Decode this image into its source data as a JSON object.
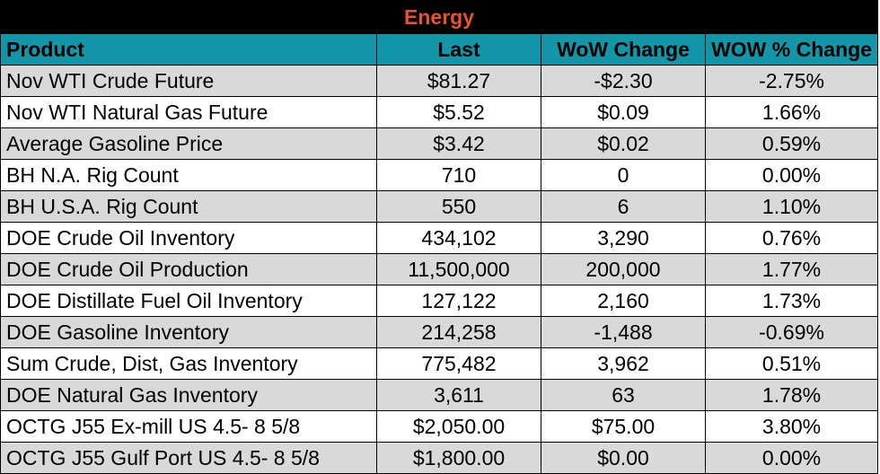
{
  "title": "Energy",
  "colors": {
    "title_bg": "#000000",
    "title_text": "#e8532e",
    "header_bg": "#1496a9",
    "row_alt_bg": "#d9d9d9",
    "row_bg": "#ffffff",
    "border": "#000000"
  },
  "headers": {
    "product": "Product",
    "last": "Last",
    "wow_change": "WoW Change",
    "wow_pct_change": "WOW % Change"
  },
  "rows": [
    {
      "product": "Nov WTI Crude Future",
      "last": "$81.27",
      "wow_change": "-$2.30",
      "wow_pct_change": "-2.75%"
    },
    {
      "product": "Nov WTI Natural Gas Future",
      "last": "$5.52",
      "wow_change": "$0.09",
      "wow_pct_change": "1.66%"
    },
    {
      "product": "Average Gasoline Price",
      "last": "$3.42",
      "wow_change": "$0.02",
      "wow_pct_change": "0.59%"
    },
    {
      "product": "BH N.A. Rig Count",
      "last": "710",
      "wow_change": "0",
      "wow_pct_change": "0.00%"
    },
    {
      "product": "BH U.S.A. Rig Count",
      "last": "550",
      "wow_change": "6",
      "wow_pct_change": "1.10%"
    },
    {
      "product": "DOE Crude Oil Inventory",
      "last": "434,102",
      "wow_change": "3,290",
      "wow_pct_change": "0.76%"
    },
    {
      "product": "DOE Crude Oil Production",
      "last": "11,500,000",
      "wow_change": "200,000",
      "wow_pct_change": "1.77%"
    },
    {
      "product": "DOE Distillate Fuel Oil Inventory",
      "last": "127,122",
      "wow_change": "2,160",
      "wow_pct_change": "1.73%"
    },
    {
      "product": "DOE Gasoline Inventory",
      "last": "214,258",
      "wow_change": "-1,488",
      "wow_pct_change": "-0.69%"
    },
    {
      "product": "Sum Crude, Dist, Gas Inventory",
      "last": "775,482",
      "wow_change": "3,962",
      "wow_pct_change": "0.51%"
    },
    {
      "product": "DOE Natural Gas Inventory",
      "last": "3,611",
      "wow_change": "63",
      "wow_pct_change": "1.78%"
    },
    {
      "product": "OCTG J55 Ex-mill US 4.5- 8 5/8",
      "last": "$2,050.00",
      "wow_change": "$75.00",
      "wow_pct_change": "3.80%"
    },
    {
      "product": "OCTG J55 Gulf Port US 4.5- 8 5/8",
      "last": "$1,800.00",
      "wow_change": "$0.00",
      "wow_pct_change": "0.00%"
    }
  ]
}
